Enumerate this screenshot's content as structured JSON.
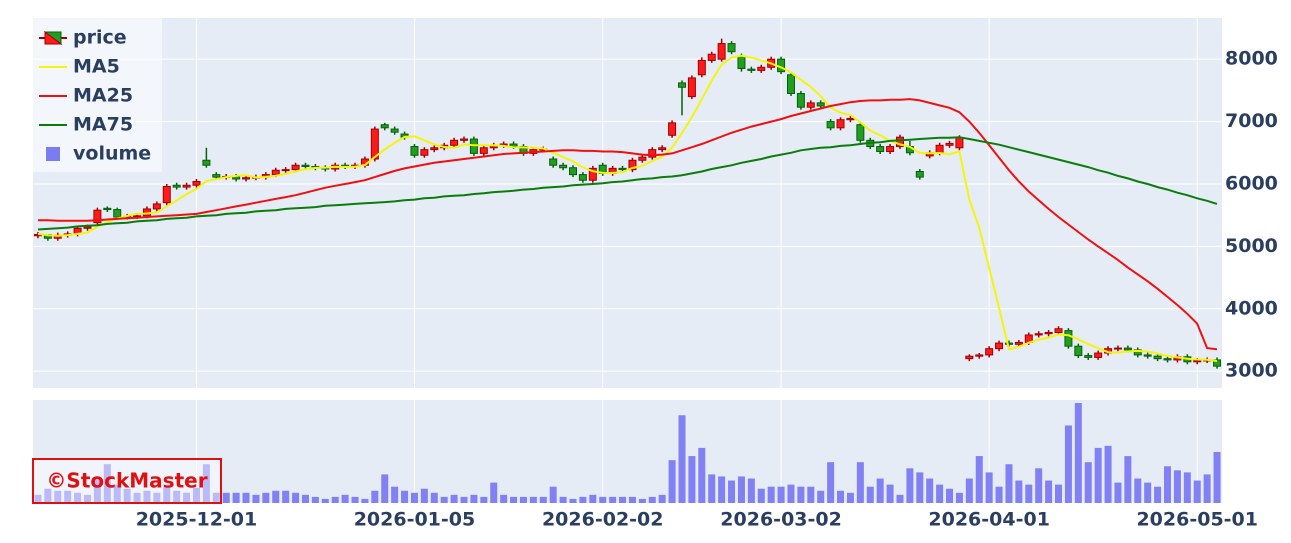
{
  "chart_data": {
    "type": "candlestick",
    "series_name": "price",
    "up_color": "#ff1a1a",
    "down_color": "#1f9e1f",
    "legend": "top-left",
    "grid": true,
    "watermark": "©StockMaster",
    "x": [
      "2025-11-06",
      "2025-11-07",
      "2025-11-10",
      "2025-11-11",
      "2025-11-12",
      "2025-11-13",
      "2025-11-14",
      "2025-11-17",
      "2025-11-18",
      "2025-11-19",
      "2025-11-20",
      "2025-11-21",
      "2025-11-25",
      "2025-11-26",
      "2025-11-27",
      "2025-11-28",
      "2025-12-01",
      "2025-12-02",
      "2025-12-03",
      "2025-12-04",
      "2025-12-05",
      "2025-12-08",
      "2025-12-09",
      "2025-12-10",
      "2025-12-11",
      "2025-12-12",
      "2025-12-15",
      "2025-12-16",
      "2025-12-17",
      "2025-12-18",
      "2025-12-19",
      "2025-12-22",
      "2025-12-23",
      "2025-12-24",
      "2025-12-25",
      "2025-12-26",
      "2025-12-29",
      "2025-12-30",
      "2026-01-05",
      "2026-01-06",
      "2026-01-07",
      "2026-01-08",
      "2026-01-09",
      "2026-01-13",
      "2026-01-14",
      "2026-01-15",
      "2026-01-16",
      "2026-01-19",
      "2026-01-20",
      "2026-01-21",
      "2026-01-22",
      "2026-01-23",
      "2026-01-26",
      "2026-01-27",
      "2026-01-28",
      "2026-01-29",
      "2026-01-30",
      "2026-02-02",
      "2026-02-03",
      "2026-02-04",
      "2026-02-05",
      "2026-02-06",
      "2026-02-09",
      "2026-02-10",
      "2026-02-12",
      "2026-02-13",
      "2026-02-16",
      "2026-02-17",
      "2026-02-18",
      "2026-02-19",
      "2026-02-20",
      "2026-02-24",
      "2026-02-25",
      "2026-02-26",
      "2026-02-27",
      "2026-03-02",
      "2026-03-03",
      "2026-03-04",
      "2026-03-05",
      "2026-03-06",
      "2026-03-09",
      "2026-03-10",
      "2026-03-11",
      "2026-03-12",
      "2026-03-13",
      "2026-03-16",
      "2026-03-17",
      "2026-03-18",
      "2026-03-19",
      "2026-03-23",
      "2026-03-24",
      "2026-03-25",
      "2026-03-26",
      "2026-03-27",
      "2026-03-30",
      "2026-03-31",
      "2026-04-01",
      "2026-04-02",
      "2026-04-03",
      "2026-04-06",
      "2026-04-07",
      "2026-04-08",
      "2026-04-09",
      "2026-04-10",
      "2026-04-13",
      "2026-04-14",
      "2026-04-15",
      "2026-04-16",
      "2026-04-17",
      "2026-04-20",
      "2026-04-21",
      "2026-04-22",
      "2026-04-23",
      "2026-04-24",
      "2026-04-27",
      "2026-04-28",
      "2026-04-30",
      "2026-05-01",
      "2026-05-07",
      "2026-05-08"
    ],
    "open": [
      5170,
      5190,
      5130,
      5180,
      5200,
      5290,
      5380,
      5610,
      5590,
      5470,
      5480,
      5490,
      5600,
      5700,
      5980,
      5950,
      5980,
      6380,
      6150,
      6110,
      6120,
      6080,
      6100,
      6110,
      6150,
      6220,
      6230,
      6300,
      6280,
      6260,
      6240,
      6300,
      6280,
      6300,
      6400,
      6950,
      6880,
      6800,
      6600,
      6460,
      6550,
      6580,
      6620,
      6700,
      6720,
      6490,
      6580,
      6620,
      6640,
      6600,
      6490,
      6550,
      6400,
      6300,
      6260,
      6150,
      6060,
      6300,
      6170,
      6250,
      6230,
      6380,
      6430,
      6550,
      6780,
      7620,
      7400,
      7750,
      7980,
      8000,
      8250,
      8050,
      7840,
      7820,
      7870,
      8000,
      7750,
      7450,
      7230,
      7300,
      7000,
      6900,
      7030,
      6950,
      6700,
      6600,
      6520,
      6600,
      6600,
      6200,
      6450,
      6500,
      6620,
      6580,
      3200,
      3240,
      3260,
      3360,
      3450,
      3430,
      3460,
      3580,
      3600,
      3620,
      3650,
      3400,
      3250,
      3220,
      3290,
      3360,
      3370,
      3340,
      3260,
      3240,
      3200,
      3180,
      3230,
      3150,
      3170,
      3180
    ],
    "high": [
      5230,
      5190,
      5220,
      5240,
      5330,
      5350,
      5620,
      5640,
      5620,
      5520,
      5530,
      5640,
      5720,
      6000,
      6020,
      6020,
      6080,
      6580,
      6190,
      6160,
      6160,
      6140,
      6150,
      6190,
      6260,
      6270,
      6340,
      6340,
      6320,
      6300,
      6340,
      6340,
      6340,
      6440,
      6920,
      6980,
      6920,
      6840,
      6640,
      6590,
      6620,
      6660,
      6740,
      6760,
      6760,
      6620,
      6660,
      6680,
      6680,
      6640,
      6590,
      6600,
      6440,
      6340,
      6300,
      6190,
      6290,
      6340,
      6290,
      6290,
      6420,
      6470,
      6590,
      6620,
      7020,
      7660,
      7740,
      8030,
      8120,
      8330,
      8290,
      8090,
      7880,
      7910,
      8040,
      8040,
      7790,
      7490,
      7340,
      7340,
      7040,
      7070,
      7090,
      6990,
      6740,
      6640,
      6640,
      6790,
      6690,
      6240,
      6540,
      6660,
      6690,
      6780,
      3270,
      3290,
      3400,
      3490,
      3490,
      3500,
      3620,
      3640,
      3660,
      3720,
      3690,
      3440,
      3290,
      3330,
      3400,
      3410,
      3410,
      3380,
      3300,
      3280,
      3240,
      3270,
      3270,
      3210,
      3220,
      3220
    ],
    "low": [
      5130,
      5090,
      5090,
      5140,
      5160,
      5250,
      5340,
      5550,
      5430,
      5430,
      5440,
      5450,
      5560,
      5660,
      5910,
      5910,
      5940,
      6260,
      6070,
      6070,
      6040,
      6040,
      6060,
      6070,
      6110,
      6180,
      6190,
      6240,
      6220,
      6200,
      6200,
      6240,
      6240,
      6260,
      6360,
      6860,
      6790,
      6710,
      6420,
      6420,
      6510,
      6540,
      6580,
      6660,
      6450,
      6450,
      6540,
      6580,
      6560,
      6450,
      6450,
      6510,
      6260,
      6220,
      6110,
      6020,
      6020,
      6130,
      6130,
      6190,
      6190,
      6340,
      6390,
      6510,
      6740,
      7100,
      7360,
      7710,
      7940,
      7960,
      8080,
      7800,
      7780,
      7780,
      7830,
      7760,
      7410,
      7190,
      7190,
      7210,
      6860,
      6860,
      6990,
      6660,
      6560,
      6480,
      6480,
      6560,
      6460,
      6070,
      6410,
      6460,
      6580,
      6540,
      3160,
      3200,
      3220,
      3320,
      3390,
      3390,
      3420,
      3540,
      3560,
      3580,
      3360,
      3210,
      3180,
      3180,
      3250,
      3320,
      3300,
      3220,
      3200,
      3160,
      3140,
      3140,
      3110,
      3110,
      3130,
      3040
    ],
    "close": [
      5190,
      5130,
      5180,
      5200,
      5290,
      5310,
      5580,
      5590,
      5470,
      5480,
      5490,
      5600,
      5680,
      5960,
      5950,
      5980,
      6040,
      6300,
      6110,
      6120,
      6080,
      6100,
      6110,
      6150,
      6220,
      6230,
      6300,
      6280,
      6260,
      6240,
      6300,
      6280,
      6300,
      6400,
      6880,
      6900,
      6830,
      6750,
      6460,
      6550,
      6580,
      6620,
      6700,
      6720,
      6490,
      6580,
      6620,
      6640,
      6600,
      6490,
      6550,
      6560,
      6300,
      6260,
      6150,
      6060,
      6250,
      6170,
      6250,
      6230,
      6380,
      6430,
      6550,
      6580,
      6980,
      7550,
      7700,
      7980,
      8080,
      8250,
      8120,
      7850,
      7820,
      7870,
      8000,
      7800,
      7450,
      7230,
      7300,
      7250,
      6900,
      7030,
      7050,
      6700,
      6600,
      6520,
      6600,
      6750,
      6500,
      6110,
      6500,
      6620,
      6650,
      6740,
      3240,
      3260,
      3360,
      3450,
      3430,
      3460,
      3580,
      3600,
      3620,
      3680,
      3400,
      3250,
      3220,
      3290,
      3360,
      3370,
      3340,
      3260,
      3240,
      3200,
      3180,
      3230,
      3150,
      3170,
      3180,
      3080
    ],
    "lines": [
      {
        "name": "MA5",
        "color": "#f5f50a",
        "values": [
          5200,
          5180,
          5170,
          5180,
          5200,
          5222,
          5312,
          5394,
          5448,
          5486,
          5522,
          5526,
          5544,
          5642,
          5736,
          5834,
          5922,
          6046,
          6076,
          6110,
          6130,
          6142,
          6104,
          6112,
          6132,
          6162,
          6202,
          6236,
          6258,
          6262,
          6276,
          6272,
          6276,
          6304,
          6432,
          6552,
          6662,
          6752,
          6764,
          6698,
          6634,
          6592,
          6582,
          6634,
          6622,
          6622,
          6622,
          6610,
          6586,
          6586,
          6580,
          6568,
          6500,
          6432,
          6364,
          6266,
          6204,
          6178,
          6176,
          6192,
          6256,
          6292,
          6368,
          6434,
          6584,
          6818,
          7072,
          7358,
          7658,
          7912,
          8026,
          8056,
          8024,
          7982,
          7932,
          7868,
          7788,
          7670,
          7556,
          7406,
          7226,
          7142,
          7106,
          6986,
          6856,
          6780,
          6694,
          6634,
          6594,
          6496,
          6492,
          6496,
          6476,
          6524,
          5750,
          5302,
          4650,
          4010,
          3348,
          3392,
          3456,
          3504,
          3538,
          3588,
          3576,
          3510,
          3434,
          3368,
          3304,
          3298,
          3316,
          3324,
          3314,
          3282,
          3244,
          3222,
          3200,
          3186,
          3182,
          3162
        ]
      },
      {
        "name": "MA25",
        "color": "#f01010",
        "values": [
          5420,
          5420,
          5410,
          5410,
          5410,
          5410,
          5420,
          5430,
          5440,
          5450,
          5460,
          5470,
          5480,
          5490,
          5500,
          5510,
          5520,
          5550,
          5580,
          5610,
          5640,
          5670,
          5700,
          5730,
          5760,
          5790,
          5820,
          5860,
          5900,
          5940,
          5970,
          6000,
          6030,
          6060,
          6110,
          6160,
          6210,
          6250,
          6280,
          6310,
          6340,
          6360,
          6380,
          6400,
          6420,
          6440,
          6460,
          6480,
          6490,
          6500,
          6510,
          6520,
          6530,
          6540,
          6540,
          6530,
          6530,
          6520,
          6520,
          6510,
          6490,
          6470,
          6460,
          6470,
          6490,
          6540,
          6590,
          6640,
          6700,
          6760,
          6820,
          6870,
          6920,
          6960,
          7000,
          7040,
          7090,
          7130,
          7170,
          7210,
          7250,
          7280,
          7310,
          7330,
          7340,
          7340,
          7350,
          7350,
          7360,
          7340,
          7300,
          7260,
          7220,
          7150,
          7000,
          6820,
          6620,
          6420,
          6220,
          6040,
          5880,
          5740,
          5600,
          5470,
          5350,
          5230,
          5110,
          5000,
          4890,
          4780,
          4660,
          4550,
          4440,
          4320,
          4190,
          4060,
          3920,
          3760,
          3370,
          3350
        ]
      },
      {
        "name": "MA75",
        "color": "#0a7d0a",
        "values": [
          5270,
          5280,
          5290,
          5300,
          5320,
          5330,
          5340,
          5360,
          5370,
          5380,
          5400,
          5410,
          5420,
          5440,
          5450,
          5460,
          5480,
          5490,
          5500,
          5520,
          5530,
          5540,
          5560,
          5570,
          5580,
          5600,
          5610,
          5620,
          5630,
          5650,
          5660,
          5670,
          5680,
          5690,
          5700,
          5710,
          5720,
          5740,
          5750,
          5770,
          5780,
          5800,
          5810,
          5820,
          5840,
          5850,
          5870,
          5880,
          5890,
          5910,
          5920,
          5940,
          5950,
          5960,
          5980,
          5990,
          6000,
          6010,
          6030,
          6040,
          6060,
          6080,
          6090,
          6110,
          6120,
          6140,
          6170,
          6200,
          6240,
          6270,
          6300,
          6340,
          6370,
          6400,
          6440,
          6470,
          6500,
          6540,
          6560,
          6580,
          6590,
          6610,
          6620,
          6640,
          6660,
          6670,
          6690,
          6700,
          6710,
          6720,
          6730,
          6740,
          6740,
          6750,
          6720,
          6690,
          6660,
          6630,
          6590,
          6550,
          6510,
          6470,
          6430,
          6390,
          6350,
          6310,
          6270,
          6220,
          6180,
          6130,
          6090,
          6040,
          6000,
          5950,
          5910,
          5860,
          5820,
          5770,
          5730,
          5680
        ]
      }
    ],
    "volume": {
      "name": "volume",
      "color": "#7b7bf2",
      "values": [
        8,
        14,
        12,
        12,
        10,
        8,
        25,
        38,
        18,
        14,
        10,
        12,
        10,
        16,
        12,
        10,
        15,
        38,
        10,
        10,
        10,
        10,
        8,
        10,
        12,
        12,
        10,
        8,
        6,
        4,
        6,
        8,
        6,
        4,
        12,
        28,
        16,
        12,
        10,
        14,
        10,
        6,
        8,
        6,
        8,
        6,
        20,
        8,
        6,
        6,
        6,
        6,
        16,
        6,
        4,
        6,
        8,
        6,
        6,
        6,
        6,
        4,
        6,
        8,
        42,
        86,
        46,
        54,
        28,
        26,
        22,
        26,
        24,
        14,
        16,
        16,
        18,
        16,
        16,
        12,
        40,
        12,
        10,
        40,
        16,
        24,
        18,
        8,
        34,
        30,
        24,
        18,
        14,
        10,
        24,
        46,
        30,
        16,
        38,
        22,
        18,
        34,
        22,
        18,
        76,
        98,
        40,
        54,
        56,
        20,
        46,
        24,
        20,
        16,
        36,
        32,
        30,
        22,
        28,
        50
      ]
    },
    "ylim": [
      2730,
      8660
    ],
    "yticks": [
      3000,
      4000,
      5000,
      6000,
      7000,
      8000
    ],
    "xticks": [
      "2025-12-01",
      "2026-01-05",
      "2026-02-02",
      "2026-03-02",
      "2026-04-01",
      "2026-05-01"
    ]
  }
}
